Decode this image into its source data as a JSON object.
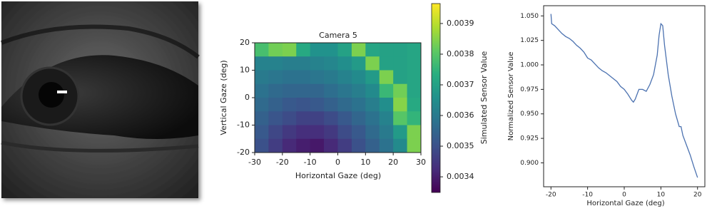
{
  "chart_data": [
    {
      "type": "heatmap",
      "title": "Camera 5",
      "x_label": "Horizontal Gaze (deg)",
      "y_label": "Vertical Gaze (deg)",
      "colorbar_label": "Simulated Sensor Value",
      "colormap": "viridis",
      "x": [
        -27.5,
        -22.5,
        -17.5,
        -12.5,
        -7.5,
        -2.5,
        2.5,
        7.5,
        12.5,
        17.5,
        22.5,
        27.5
      ],
      "y": [
        17.5,
        12.5,
        7.5,
        2.5,
        -2.5,
        -7.5,
        -12.5,
        -17.5
      ],
      "z": [
        [
          0.00378,
          0.00383,
          0.00384,
          0.00372,
          0.00366,
          0.00366,
          0.0037,
          0.00384,
          0.00371,
          0.0037,
          0.0037,
          0.00371
        ],
        [
          0.00362,
          0.00362,
          0.00361,
          0.00361,
          0.00362,
          0.00363,
          0.00365,
          0.00368,
          0.00384,
          0.0037,
          0.0037,
          0.00371
        ],
        [
          0.0036,
          0.00359,
          0.00358,
          0.00358,
          0.00359,
          0.0036,
          0.00362,
          0.00364,
          0.00368,
          0.00384,
          0.0037,
          0.00371
        ],
        [
          0.00358,
          0.00356,
          0.00355,
          0.00355,
          0.00355,
          0.00357,
          0.00359,
          0.00361,
          0.00364,
          0.00376,
          0.00383,
          0.00371
        ],
        [
          0.00356,
          0.00354,
          0.00352,
          0.00351,
          0.00352,
          0.00354,
          0.00356,
          0.00358,
          0.00361,
          0.00365,
          0.00385,
          0.00372
        ],
        [
          0.00354,
          0.00351,
          0.00349,
          0.00347,
          0.00347,
          0.00349,
          0.00352,
          0.00355,
          0.00358,
          0.00362,
          0.0038,
          0.00375
        ],
        [
          0.00352,
          0.00348,
          0.00345,
          0.00343,
          0.00343,
          0.00345,
          0.00349,
          0.00352,
          0.00356,
          0.0036,
          0.00368,
          0.00384
        ],
        [
          0.0035,
          0.00346,
          0.00342,
          0.0034,
          0.00339,
          0.00342,
          0.00346,
          0.0035,
          0.00354,
          0.00358,
          0.00364,
          0.00384
        ]
      ],
      "xlim": [
        -30,
        30
      ],
      "xticks": [
        -30,
        -20,
        -10,
        0,
        10,
        20,
        30
      ],
      "ylim": [
        -20,
        20
      ],
      "yticks": [
        -20,
        -10,
        0,
        10,
        20
      ],
      "clim": [
        0.003349,
        0.003965
      ],
      "cticks": [
        0.0034,
        0.0035,
        0.0036,
        0.0037,
        0.0038,
        0.0039
      ]
    },
    {
      "type": "line",
      "x_label": "Horizontal Gaze (deg)",
      "y_label": "Normalized Sensor Value",
      "color": "#4c72b0",
      "x": [
        -20,
        -19.8,
        -19,
        -18,
        -17,
        -16,
        -15,
        -14,
        -13,
        -12,
        -11,
        -10,
        -9,
        -8,
        -7,
        -6,
        -5,
        -4,
        -3,
        -2,
        -1,
        0,
        1,
        2,
        2.5,
        3,
        4,
        5,
        6,
        7,
        8,
        9,
        9.5,
        10,
        10.5,
        11,
        12,
        13,
        14,
        15,
        15.5,
        16,
        17,
        18,
        19,
        20
      ],
      "values": [
        1.052,
        1.042,
        1.04,
        1.036,
        1.032,
        1.029,
        1.027,
        1.024,
        1.02,
        1.017,
        1.013,
        1.007,
        1.005,
        1.001,
        0.997,
        0.994,
        0.992,
        0.989,
        0.986,
        0.983,
        0.978,
        0.975,
        0.97,
        0.964,
        0.962,
        0.965,
        0.975,
        0.975,
        0.973,
        0.98,
        0.99,
        1.01,
        1.03,
        1.042,
        1.04,
        1.02,
        0.99,
        0.968,
        0.95,
        0.937,
        0.937,
        0.928,
        0.918,
        0.908,
        0.896,
        0.885
      ],
      "xlim": [
        -22,
        22
      ],
      "xticks": [
        -20,
        -10,
        0,
        10,
        20
      ],
      "ylim": [
        0.8756,
        1.0604
      ],
      "yticks": [
        {
          "value": 0.9,
          "label": "0.900"
        },
        {
          "value": 0.925,
          "label": "0.925"
        },
        {
          "value": 0.95,
          "label": "0.950"
        },
        {
          "value": 0.975,
          "label": "0.975"
        },
        {
          "value": 1.0,
          "label": "1.000"
        },
        {
          "value": 1.025,
          "label": "1.025"
        },
        {
          "value": 1.05,
          "label": "1.050"
        }
      ]
    }
  ]
}
